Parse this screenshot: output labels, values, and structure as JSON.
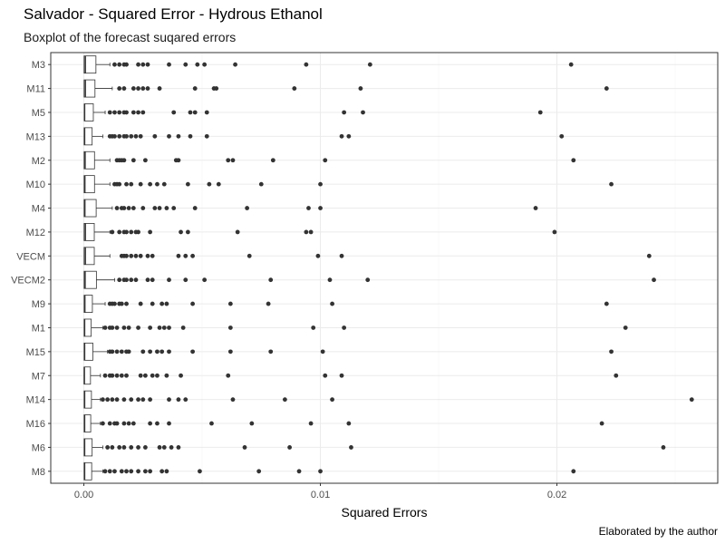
{
  "chart_data": {
    "type": "boxplot",
    "title": "Salvador - Squared Error - Hydrous Ethanol",
    "subtitle": "Boxplot of the forecast suqared errors",
    "xlabel": "Squared Errors",
    "caption": "Elaborated by the author",
    "xlim": [
      -0.0014,
      0.0268
    ],
    "x_ticks": [
      0,
      0.01,
      0.02
    ],
    "x_tick_labels": [
      "0.00",
      "0.01",
      "0.02"
    ],
    "grid": true,
    "categories": [
      "M3",
      "M11",
      "M5",
      "M13",
      "M2",
      "M10",
      "M4",
      "M12",
      "VECM",
      "VECM2",
      "M9",
      "M1",
      "M15",
      "M7",
      "M14",
      "M16",
      "M6",
      "M8"
    ],
    "series": [
      {
        "category": "M3",
        "q1": 1e-05,
        "median": 6e-05,
        "q3": 0.00051,
        "whisker_high": 0.0011,
        "outliers": [
          0.0013,
          0.0015,
          0.0017,
          0.0018,
          0.0023,
          0.0025,
          0.0027,
          0.0036,
          0.0043,
          0.0048,
          0.0051,
          0.0064,
          0.0094,
          0.0121,
          0.0206
        ]
      },
      {
        "category": "M11",
        "q1": 1e-05,
        "median": 6e-05,
        "q3": 0.00047,
        "whisker_high": 0.0012,
        "outliers": [
          0.0015,
          0.0017,
          0.0021,
          0.0023,
          0.0025,
          0.0027,
          0.0032,
          0.0047,
          0.0055,
          0.0056,
          0.0089,
          0.0117,
          0.0221
        ]
      },
      {
        "category": "M5",
        "q1": 2e-05,
        "median": 3e-05,
        "q3": 0.0004,
        "whisker_high": 0.0009,
        "outliers": [
          0.0011,
          0.0013,
          0.0015,
          0.0017,
          0.0018,
          0.0021,
          0.0023,
          0.0025,
          0.0038,
          0.0045,
          0.0047,
          0.0052,
          0.011,
          0.0118,
          0.0193
        ]
      },
      {
        "category": "M13",
        "q1": 1e-05,
        "median": 3e-05,
        "q3": 0.00035,
        "whisker_high": 0.0008,
        "outliers": [
          0.0011,
          0.0012,
          0.0013,
          0.0015,
          0.0017,
          0.0018,
          0.002,
          0.0022,
          0.0024,
          0.003,
          0.0036,
          0.004,
          0.0045,
          0.0052,
          0.0109,
          0.0112,
          0.0202
        ]
      },
      {
        "category": "M2",
        "q1": 1e-05,
        "median": 5e-05,
        "q3": 0.00045,
        "whisker_high": 0.0011,
        "outliers": [
          0.0014,
          0.0015,
          0.0016,
          0.0017,
          0.0021,
          0.0026,
          0.0039,
          0.004,
          0.0061,
          0.0063,
          0.008,
          0.0102,
          0.0207
        ]
      },
      {
        "category": "M10",
        "q1": 1e-05,
        "median": 4e-05,
        "q3": 0.00045,
        "whisker_high": 0.0011,
        "outliers": [
          0.0013,
          0.0014,
          0.0015,
          0.0018,
          0.002,
          0.0024,
          0.0028,
          0.0031,
          0.0034,
          0.0044,
          0.0053,
          0.0057,
          0.0075,
          0.01,
          0.0223
        ]
      },
      {
        "category": "M4",
        "q1": 1e-05,
        "median": 4e-05,
        "q3": 0.00052,
        "whisker_high": 0.0012,
        "outliers": [
          0.0014,
          0.0016,
          0.0017,
          0.0019,
          0.0021,
          0.0025,
          0.003,
          0.0032,
          0.0035,
          0.0038,
          0.0047,
          0.0069,
          0.0095,
          0.01,
          0.0191
        ]
      },
      {
        "category": "M12",
        "q1": 1e-05,
        "median": 6e-05,
        "q3": 0.00044,
        "whisker_high": 0.0011,
        "outliers": [
          0.0012,
          0.0015,
          0.0017,
          0.0018,
          0.002,
          0.0022,
          0.0023,
          0.0028,
          0.0041,
          0.0044,
          0.0065,
          0.0094,
          0.0096,
          0.0199
        ]
      },
      {
        "category": "VECM",
        "q1": 1e-05,
        "median": 6e-05,
        "q3": 0.00044,
        "whisker_high": 0.0011,
        "outliers": [
          0.0016,
          0.0017,
          0.0018,
          0.002,
          0.0022,
          0.0024,
          0.0027,
          0.0029,
          0.004,
          0.0043,
          0.0046,
          0.007,
          0.0099,
          0.0109,
          0.0239
        ]
      },
      {
        "category": "VECM2",
        "q1": 1e-05,
        "median": 5e-05,
        "q3": 0.00053,
        "whisker_high": 0.0013,
        "outliers": [
          0.0015,
          0.0017,
          0.0018,
          0.002,
          0.0022,
          0.0027,
          0.0029,
          0.0036,
          0.0043,
          0.0051,
          0.0079,
          0.0104,
          0.012,
          0.0241
        ]
      },
      {
        "category": "M9",
        "q1": 1e-05,
        "median": 4e-05,
        "q3": 0.00036,
        "whisker_high": 0.0009,
        "outliers": [
          0.0011,
          0.0012,
          0.0013,
          0.0015,
          0.0016,
          0.0018,
          0.0024,
          0.0029,
          0.0033,
          0.0035,
          0.0046,
          0.0062,
          0.0078,
          0.0105,
          0.0221
        ]
      },
      {
        "category": "M1",
        "q1": 1e-05,
        "median": 3e-05,
        "q3": 0.00031,
        "whisker_high": 0.0008,
        "outliers": [
          0.0009,
          0.0011,
          0.0012,
          0.0014,
          0.0017,
          0.0019,
          0.0023,
          0.0028,
          0.0032,
          0.0034,
          0.0036,
          0.0042,
          0.0062,
          0.0097,
          0.011,
          0.0229
        ]
      },
      {
        "category": "M15",
        "q1": 1e-05,
        "median": 3e-05,
        "q3": 0.00038,
        "whisker_high": 0.001,
        "outliers": [
          0.0011,
          0.0012,
          0.0014,
          0.0016,
          0.0018,
          0.0019,
          0.0025,
          0.0028,
          0.0031,
          0.0033,
          0.0036,
          0.0046,
          0.0062,
          0.0079,
          0.0101,
          0.0223
        ]
      },
      {
        "category": "M7",
        "q1": 1e-05,
        "median": 2e-05,
        "q3": 0.00028,
        "whisker_high": 0.0007,
        "outliers": [
          0.0009,
          0.0011,
          0.0012,
          0.0014,
          0.0016,
          0.0018,
          0.0024,
          0.0026,
          0.0029,
          0.0031,
          0.0035,
          0.0041,
          0.0061,
          0.0102,
          0.0109,
          0.0225
        ]
      },
      {
        "category": "M14",
        "q1": 1e-05,
        "median": 3e-05,
        "q3": 0.00032,
        "whisker_high": 0.0007,
        "outliers": [
          0.0008,
          0.001,
          0.0012,
          0.0014,
          0.0017,
          0.002,
          0.0023,
          0.0025,
          0.0028,
          0.0036,
          0.004,
          0.0043,
          0.0063,
          0.0085,
          0.0105,
          0.0257
        ]
      },
      {
        "category": "M16",
        "q1": 1e-05,
        "median": 3e-05,
        "q3": 0.00029,
        "whisker_high": 0.0007,
        "outliers": [
          0.0008,
          0.0011,
          0.0013,
          0.0014,
          0.0017,
          0.0019,
          0.0021,
          0.0028,
          0.0031,
          0.0036,
          0.0054,
          0.0071,
          0.0096,
          0.0112,
          0.0219
        ]
      },
      {
        "category": "M6",
        "q1": 1e-05,
        "median": 3e-05,
        "q3": 0.00035,
        "whisker_high": 0.0008,
        "outliers": [
          0.001,
          0.0012,
          0.0015,
          0.0017,
          0.002,
          0.0023,
          0.0026,
          0.0032,
          0.0034,
          0.0037,
          0.004,
          0.0068,
          0.0087,
          0.0113,
          0.0245
        ]
      },
      {
        "category": "M8",
        "q1": 1e-05,
        "median": 3e-05,
        "q3": 0.00033,
        "whisker_high": 0.0008,
        "outliers": [
          0.0009,
          0.0011,
          0.0013,
          0.0016,
          0.0018,
          0.002,
          0.0023,
          0.0026,
          0.0028,
          0.0033,
          0.0035,
          0.0049,
          0.0074,
          0.0091,
          0.01,
          0.0207
        ]
      }
    ]
  },
  "colors": {
    "panel_border": "#333333",
    "grid_major": "#ebebeb",
    "grid_minor": "#f5f5f5",
    "point": "#333333",
    "box_fill": "#ffffff"
  }
}
